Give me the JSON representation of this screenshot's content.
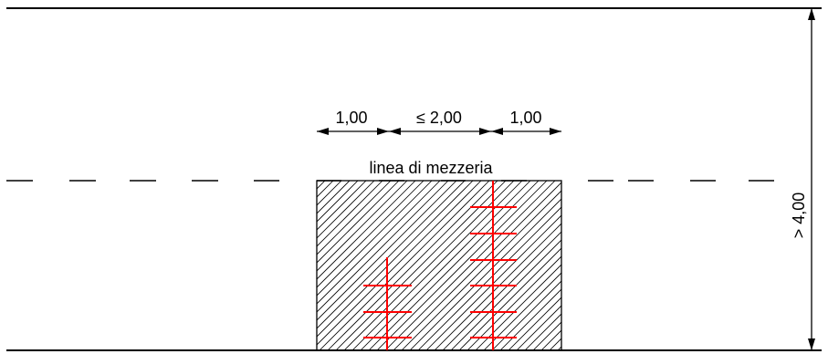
{
  "drawing": {
    "dimensions": {
      "left_width": "1,00",
      "center_width": "≤ 2,00",
      "right_width": "1,00",
      "height": "> 4,00"
    },
    "centerline_label": "linea di mezzeria"
  },
  "colors": {
    "line": "#000000",
    "ladder": "#ff0000",
    "hatch": "#000000",
    "background": "#ffffff"
  }
}
